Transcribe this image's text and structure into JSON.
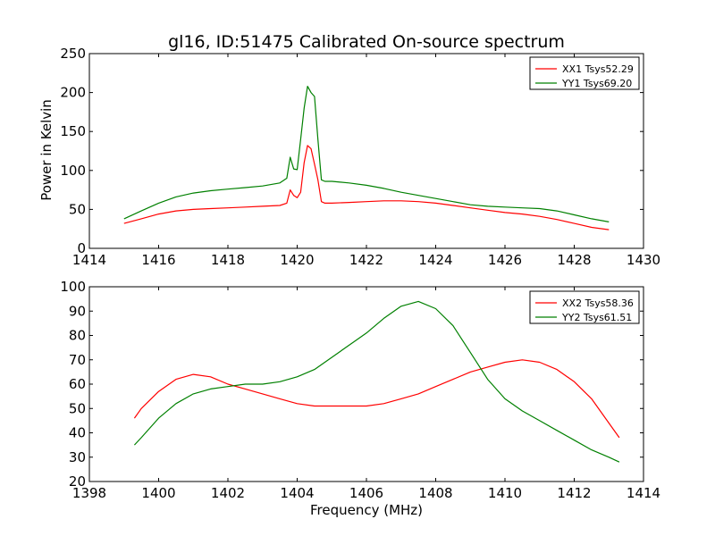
{
  "chart_data": [
    {
      "type": "line",
      "title": "gl16, ID:51475 Calibrated On-source spectrum",
      "xlabel": "",
      "ylabel": "Power in Kelvin",
      "xlim": [
        1414,
        1430
      ],
      "ylim": [
        0,
        250
      ],
      "xticks": [
        1414,
        1416,
        1418,
        1420,
        1422,
        1424,
        1426,
        1428,
        1430
      ],
      "yticks": [
        0,
        50,
        100,
        150,
        200,
        250
      ],
      "grid": false,
      "legend": "top-right",
      "series": [
        {
          "name": "XX1 Tsys52.29",
          "color": "#ff0000",
          "x": [
            1415.0,
            1415.5,
            1416.0,
            1416.5,
            1417.0,
            1417.5,
            1418.0,
            1418.5,
            1419.0,
            1419.5,
            1419.7,
            1419.8,
            1419.9,
            1420.0,
            1420.1,
            1420.2,
            1420.3,
            1420.4,
            1420.5,
            1420.6,
            1420.7,
            1420.8,
            1421.0,
            1421.5,
            1422.0,
            1422.5,
            1423.0,
            1423.5,
            1424.0,
            1424.5,
            1425.0,
            1425.5,
            1426.0,
            1426.5,
            1427.0,
            1427.5,
            1428.0,
            1428.5,
            1429.0
          ],
          "y": [
            32,
            38,
            44,
            48,
            50,
            51,
            52,
            53,
            54,
            55,
            58,
            75,
            68,
            65,
            72,
            110,
            132,
            128,
            108,
            88,
            60,
            58,
            58,
            59,
            60,
            61,
            61,
            60,
            58,
            55,
            52,
            49,
            46,
            44,
            41,
            37,
            32,
            27,
            24
          ]
        },
        {
          "name": "YY1 Tsys69.20",
          "color": "#008000",
          "x": [
            1415.0,
            1415.5,
            1416.0,
            1416.5,
            1417.0,
            1417.5,
            1418.0,
            1418.5,
            1419.0,
            1419.5,
            1419.7,
            1419.8,
            1419.9,
            1420.0,
            1420.1,
            1420.2,
            1420.3,
            1420.4,
            1420.5,
            1420.6,
            1420.7,
            1420.8,
            1421.0,
            1421.5,
            1422.0,
            1422.5,
            1423.0,
            1423.5,
            1424.0,
            1424.5,
            1425.0,
            1425.5,
            1426.0,
            1426.5,
            1427.0,
            1427.5,
            1428.0,
            1428.5,
            1429.0
          ],
          "y": [
            38,
            48,
            58,
            66,
            71,
            74,
            76,
            78,
            80,
            84,
            90,
            117,
            102,
            101,
            140,
            180,
            208,
            200,
            195,
            140,
            88,
            86,
            86,
            84,
            81,
            77,
            72,
            68,
            64,
            60,
            56,
            54,
            53,
            52,
            51,
            48,
            43,
            38,
            34
          ]
        }
      ]
    },
    {
      "type": "line",
      "title": "",
      "xlabel": "Frequency (MHz)",
      "ylabel": "",
      "xlim": [
        1398,
        1414
      ],
      "ylim": [
        20,
        100
      ],
      "xticks": [
        1398,
        1400,
        1402,
        1404,
        1406,
        1408,
        1410,
        1412,
        1414
      ],
      "yticks": [
        20,
        30,
        40,
        50,
        60,
        70,
        80,
        90,
        100
      ],
      "grid": false,
      "legend": "top-right",
      "series": [
        {
          "name": "XX2 Tsys58.36",
          "color": "#ff0000",
          "x": [
            1399.3,
            1399.5,
            1400.0,
            1400.5,
            1401.0,
            1401.5,
            1402.0,
            1402.5,
            1403.0,
            1403.5,
            1404.0,
            1404.5,
            1405.0,
            1405.5,
            1406.0,
            1406.5,
            1407.0,
            1407.5,
            1408.0,
            1408.5,
            1409.0,
            1409.5,
            1410.0,
            1410.5,
            1411.0,
            1411.5,
            1412.0,
            1412.5,
            1413.0,
            1413.3
          ],
          "y": [
            46,
            50,
            57,
            62,
            64,
            63,
            60,
            58,
            56,
            54,
            52,
            51,
            51,
            51,
            51,
            52,
            54,
            56,
            59,
            62,
            65,
            67,
            69,
            70,
            69,
            66,
            61,
            54,
            44,
            38
          ]
        },
        {
          "name": "YY2 Tsys61.51",
          "color": "#008000",
          "x": [
            1399.3,
            1399.5,
            1400.0,
            1400.5,
            1401.0,
            1401.5,
            1402.0,
            1402.5,
            1403.0,
            1403.5,
            1404.0,
            1404.5,
            1405.0,
            1405.5,
            1406.0,
            1406.5,
            1407.0,
            1407.5,
            1408.0,
            1408.5,
            1409.0,
            1409.5,
            1410.0,
            1410.5,
            1411.0,
            1411.5,
            1412.0,
            1412.5,
            1413.0,
            1413.3
          ],
          "y": [
            35,
            38,
            46,
            52,
            56,
            58,
            59,
            60,
            60,
            61,
            63,
            66,
            71,
            76,
            81,
            87,
            92,
            94,
            91,
            84,
            73,
            62,
            54,
            49,
            45,
            41,
            37,
            33,
            30,
            28
          ]
        }
      ]
    }
  ]
}
